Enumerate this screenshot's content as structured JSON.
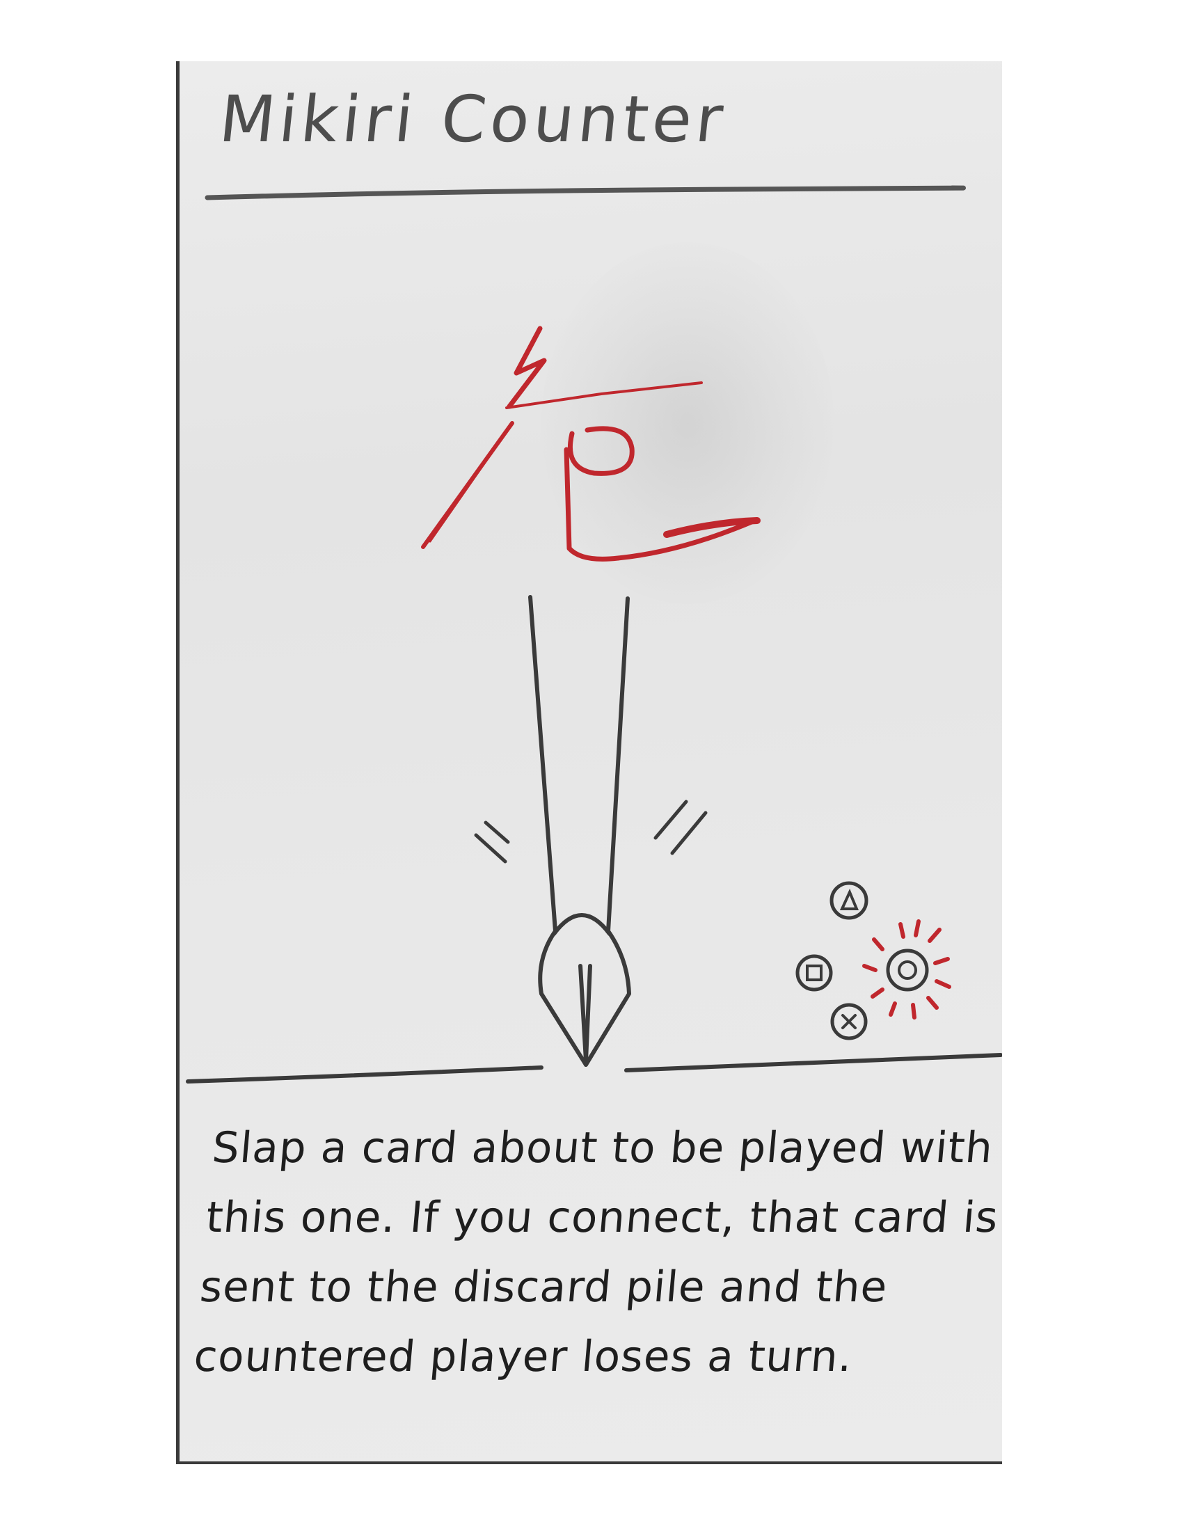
{
  "card": {
    "title": "Mikiri Counter",
    "body_text": "Slap a card about to be played with this one. If you connect, that card is sent to the discard pile and the countered player loses a turn."
  },
  "colors": {
    "background": "#ffffff",
    "paper": "#e8e8e8",
    "pencil": "#3a3a3a",
    "red_ink": "#c0272d"
  },
  "icons": {
    "danger_kanji": "danger-kanji-icon",
    "spear": "spear-tip-icon",
    "buttons": "controller-buttons-icon"
  }
}
